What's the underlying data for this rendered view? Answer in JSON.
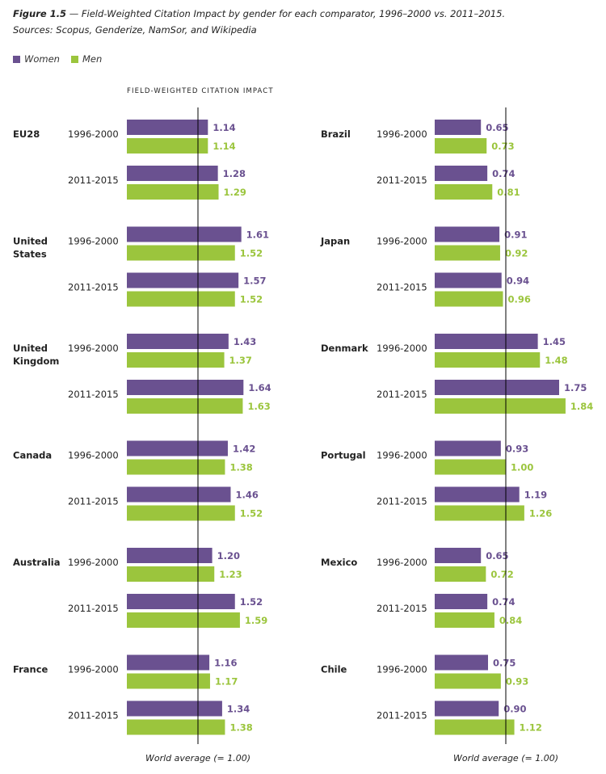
{
  "caption": {
    "figure_label": "Figure 1.5",
    "title": "— Field-Weighted Citation Impact by gender for each comparator, 1996–2000 vs. 2011–2015.",
    "sources": "Sources: Scopus, Genderize, NamSor, and Wikipedia"
  },
  "legend": {
    "women_label": "Women",
    "men_label": "Men"
  },
  "colors": {
    "women": "#6a5190",
    "men": "#9bc53d",
    "reference_line": "#000000",
    "label_text": "#222222"
  },
  "chart_data": {
    "type": "bar",
    "orientation": "horizontal",
    "axis_label": "FIELD-WEIGHTED CITATION IMPACT",
    "reference_line": {
      "value": 1.0,
      "label": "World average (= 1.00)"
    },
    "series_names": [
      "Women",
      "Men"
    ],
    "periods": [
      "1996-2000",
      "2011-2015"
    ],
    "panels": [
      {
        "countries": [
          {
            "name": "EU28",
            "values": [
              {
                "period": "1996-2000",
                "women": 1.14,
                "men": 1.14
              },
              {
                "period": "2011-2015",
                "women": 1.28,
                "men": 1.29
              }
            ]
          },
          {
            "name": "United States",
            "values": [
              {
                "period": "1996-2000",
                "women": 1.61,
                "men": 1.52
              },
              {
                "period": "2011-2015",
                "women": 1.57,
                "men": 1.52
              }
            ]
          },
          {
            "name": "United Kingdom",
            "values": [
              {
                "period": "1996-2000",
                "women": 1.43,
                "men": 1.37
              },
              {
                "period": "2011-2015",
                "women": 1.64,
                "men": 1.63
              }
            ]
          },
          {
            "name": "Canada",
            "values": [
              {
                "period": "1996-2000",
                "women": 1.42,
                "men": 1.38
              },
              {
                "period": "2011-2015",
                "women": 1.46,
                "men": 1.52
              }
            ]
          },
          {
            "name": "Australia",
            "values": [
              {
                "period": "1996-2000",
                "women": 1.2,
                "men": 1.23
              },
              {
                "period": "2011-2015",
                "women": 1.52,
                "men": 1.59
              }
            ]
          },
          {
            "name": "France",
            "values": [
              {
                "period": "1996-2000",
                "women": 1.16,
                "men": 1.17
              },
              {
                "period": "2011-2015",
                "women": 1.34,
                "men": 1.38
              }
            ]
          }
        ]
      },
      {
        "countries": [
          {
            "name": "Brazil",
            "values": [
              {
                "period": "1996-2000",
                "women": 0.65,
                "men": 0.73
              },
              {
                "period": "2011-2015",
                "women": 0.74,
                "men": 0.81
              }
            ]
          },
          {
            "name": "Japan",
            "values": [
              {
                "period": "1996-2000",
                "women": 0.91,
                "men": 0.92
              },
              {
                "period": "2011-2015",
                "women": 0.94,
                "men": 0.96
              }
            ]
          },
          {
            "name": "Denmark",
            "values": [
              {
                "period": "1996-2000",
                "women": 1.45,
                "men": 1.48
              },
              {
                "period": "2011-2015",
                "women": 1.75,
                "men": 1.84
              }
            ]
          },
          {
            "name": "Portugal",
            "values": [
              {
                "period": "1996-2000",
                "women": 0.93,
                "men": 1.0
              },
              {
                "period": "2011-2015",
                "women": 1.19,
                "men": 1.26
              }
            ]
          },
          {
            "name": "Mexico",
            "values": [
              {
                "period": "1996-2000",
                "women": 0.65,
                "men": 0.72
              },
              {
                "period": "2011-2015",
                "women": 0.74,
                "men": 0.84
              }
            ]
          },
          {
            "name": "Chile",
            "values": [
              {
                "period": "1996-2000",
                "women": 0.75,
                "men": 0.93
              },
              {
                "period": "2011-2015",
                "women": 0.9,
                "men": 1.12
              }
            ]
          }
        ]
      }
    ]
  }
}
